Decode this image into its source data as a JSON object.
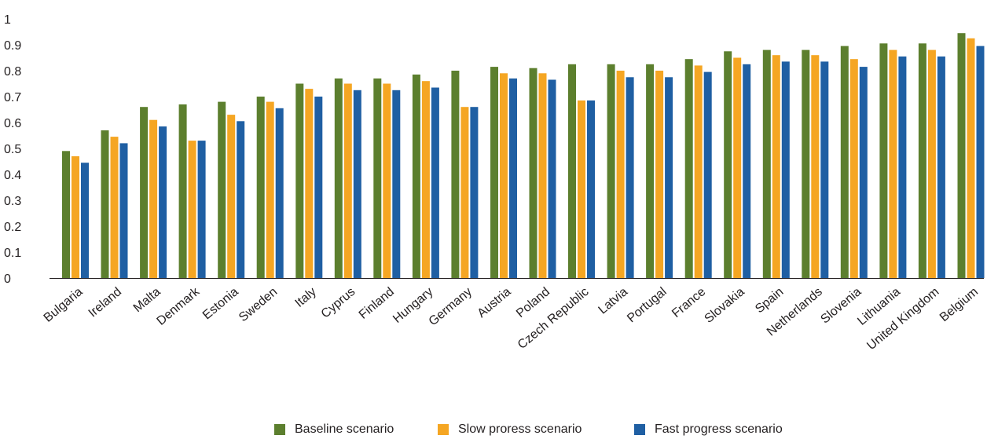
{
  "chart_data": {
    "type": "bar",
    "title": "",
    "xlabel": "",
    "ylabel": "",
    "ylim": [
      0,
      1
    ],
    "yticks": [
      "0",
      "0.1",
      "0.2",
      "0.3",
      "0.4",
      "0.5",
      "0.6",
      "0.7",
      "0.8",
      "0.9",
      "1"
    ],
    "grid": false,
    "legend_position": "bottom-center",
    "categories": [
      "Bulgaria",
      "Ireland",
      "Malta",
      "Denmark",
      "Estonia",
      "Sweden",
      "Italy",
      "Cyprus",
      "Finland",
      "Hungary",
      "Germany",
      "Austria",
      "Poland",
      "Czech Republic",
      "Latvia",
      "Portugal",
      "France",
      "Slovakia",
      "Spain",
      "Netherlands",
      "Slovenia",
      "Lithuania",
      "United Kingdom",
      "Belgium"
    ],
    "series": [
      {
        "name": "Baseline scenario",
        "color": "#5c7f2e",
        "values": [
          0.49,
          0.57,
          0.66,
          0.67,
          0.68,
          0.7,
          0.75,
          0.77,
          0.77,
          0.785,
          0.8,
          0.815,
          0.81,
          0.825,
          0.825,
          0.825,
          0.845,
          0.875,
          0.88,
          0.88,
          0.895,
          0.905,
          0.905,
          0.945
        ]
      },
      {
        "name": "Slow proress scenario",
        "color": "#f5a623",
        "values": [
          0.47,
          0.545,
          0.61,
          0.53,
          0.63,
          0.68,
          0.73,
          0.75,
          0.75,
          0.76,
          0.66,
          0.79,
          0.79,
          0.685,
          0.8,
          0.8,
          0.82,
          0.85,
          0.86,
          0.86,
          0.845,
          0.88,
          0.88,
          0.925
        ]
      },
      {
        "name": "Fast progress scenario",
        "color": "#1f5fa3",
        "values": [
          0.445,
          0.52,
          0.585,
          0.53,
          0.605,
          0.655,
          0.7,
          0.725,
          0.725,
          0.735,
          0.66,
          0.77,
          0.765,
          0.685,
          0.775,
          0.775,
          0.795,
          0.825,
          0.835,
          0.835,
          0.815,
          0.855,
          0.855,
          0.895
        ]
      }
    ]
  }
}
